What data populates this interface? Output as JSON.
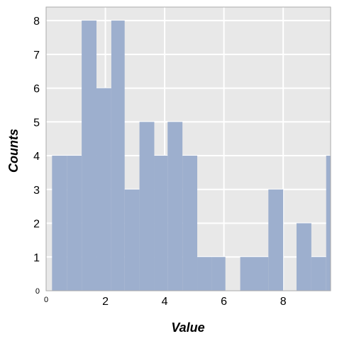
{
  "chart_data": {
    "type": "bar",
    "subtype": "histogram",
    "xlabel": "Value",
    "ylabel": "Counts",
    "xlim": [
      0,
      9.6
    ],
    "ylim": [
      0,
      8.4
    ],
    "grid": true,
    "legend": "none",
    "colors": {
      "bar": "#9badcd",
      "plot_background": "#e8e8e8",
      "grid": "#ffffff",
      "frame": "#aaaaaa"
    },
    "bins": [
      {
        "x0": 0.2,
        "x1": 0.7,
        "count": 4
      },
      {
        "x0": 0.7,
        "x1": 1.2,
        "count": 4
      },
      {
        "x0": 1.2,
        "x1": 1.7,
        "count": 8
      },
      {
        "x0": 1.7,
        "x1": 2.2,
        "count": 6
      },
      {
        "x0": 2.2,
        "x1": 2.65,
        "count": 8
      },
      {
        "x0": 2.65,
        "x1": 3.15,
        "count": 3
      },
      {
        "x0": 3.15,
        "x1": 3.65,
        "count": 5
      },
      {
        "x0": 3.65,
        "x1": 4.1,
        "count": 4
      },
      {
        "x0": 4.1,
        "x1": 4.6,
        "count": 5
      },
      {
        "x0": 4.6,
        "x1": 5.1,
        "count": 4
      },
      {
        "x0": 5.1,
        "x1": 5.6,
        "count": 1
      },
      {
        "x0": 5.6,
        "x1": 6.05,
        "count": 1
      },
      {
        "x0": 6.05,
        "x1": 6.55,
        "count": 0
      },
      {
        "x0": 6.55,
        "x1": 7.05,
        "count": 1
      },
      {
        "x0": 7.05,
        "x1": 7.5,
        "count": 1
      },
      {
        "x0": 7.5,
        "x1": 8.0,
        "count": 3
      },
      {
        "x0": 8.0,
        "x1": 8.45,
        "count": 0
      },
      {
        "x0": 8.45,
        "x1": 8.95,
        "count": 2
      },
      {
        "x0": 8.95,
        "x1": 9.45,
        "count": 1
      },
      {
        "x0": 9.45,
        "x1": 9.6,
        "count": 4
      }
    ],
    "xticks": [
      {
        "value": 0,
        "label": "0",
        "small": true
      },
      {
        "value": 2,
        "label": "2"
      },
      {
        "value": 4,
        "label": "4"
      },
      {
        "value": 6,
        "label": "6"
      },
      {
        "value": 8,
        "label": "8"
      }
    ],
    "yticks": [
      {
        "value": 0,
        "label": "0",
        "small": true
      },
      {
        "value": 1,
        "label": "1"
      },
      {
        "value": 2,
        "label": "2"
      },
      {
        "value": 3,
        "label": "3"
      },
      {
        "value": 4,
        "label": "4"
      },
      {
        "value": 5,
        "label": "5"
      },
      {
        "value": 6,
        "label": "6"
      },
      {
        "value": 7,
        "label": "7"
      },
      {
        "value": 8,
        "label": "8"
      }
    ]
  }
}
